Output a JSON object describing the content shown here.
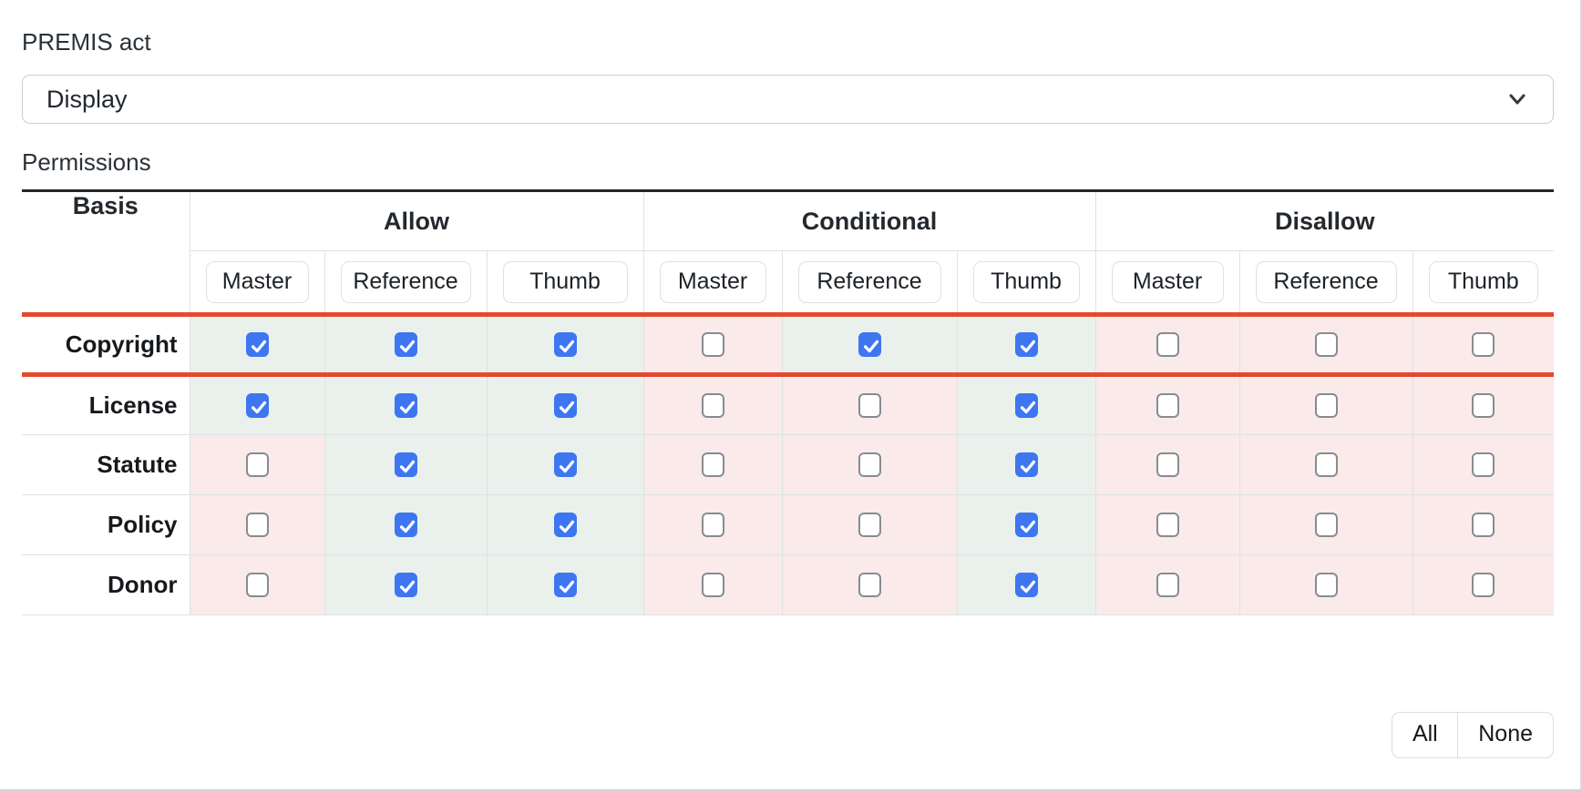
{
  "premis_act": {
    "label": "PREMIS act",
    "value": "Display"
  },
  "permissions": {
    "label": "Permissions"
  },
  "table": {
    "basis_header": "Basis",
    "groups": [
      {
        "key": "allow",
        "label": "Allow"
      },
      {
        "key": "conditional",
        "label": "Conditional"
      },
      {
        "key": "disallow",
        "label": "Disallow"
      }
    ],
    "subcolumns": [
      "Master",
      "Reference",
      "Thumb"
    ],
    "rows": [
      {
        "label": "Copyright",
        "highlighted": true,
        "cells": [
          true,
          true,
          true,
          false,
          true,
          true,
          false,
          false,
          false
        ]
      },
      {
        "label": "License",
        "highlighted": false,
        "cells": [
          true,
          true,
          true,
          false,
          false,
          true,
          false,
          false,
          false
        ]
      },
      {
        "label": "Statute",
        "highlighted": false,
        "cells": [
          false,
          true,
          true,
          false,
          false,
          true,
          false,
          false,
          false
        ]
      },
      {
        "label": "Policy",
        "highlighted": false,
        "cells": [
          false,
          true,
          true,
          false,
          false,
          true,
          false,
          false,
          false
        ]
      },
      {
        "label": "Donor",
        "highlighted": false,
        "cells": [
          false,
          true,
          true,
          false,
          false,
          true,
          false,
          false,
          false
        ]
      }
    ]
  },
  "actions": {
    "all_label": "All",
    "none_label": "None"
  },
  "icons": {
    "select_icon": "chevron-down-icon"
  },
  "colors": {
    "checkbox_checked": "#3d76f0",
    "highlight_row_border": "#e5492d",
    "checked_cell_bg": "#eaf0eb",
    "unchecked_cell_bg": "#faeaea"
  }
}
